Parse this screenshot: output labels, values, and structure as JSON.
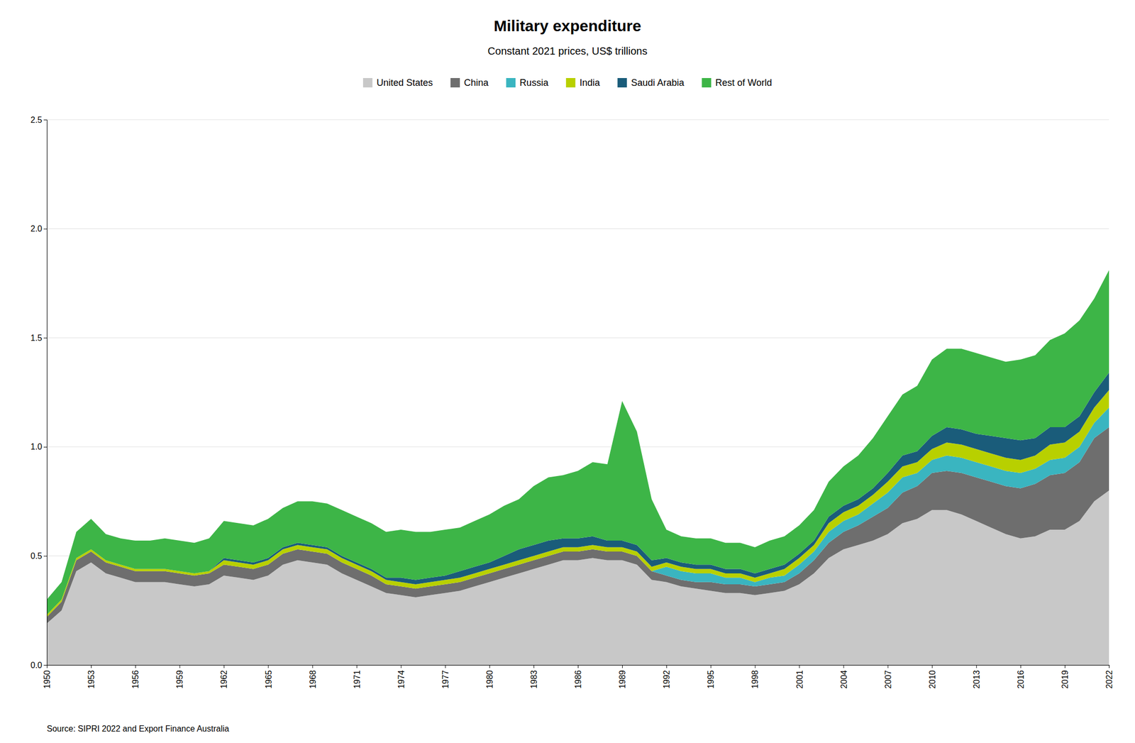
{
  "chart_data": {
    "type": "area",
    "stacked": true,
    "title": "Military expenditure",
    "subtitle": "Constant 2021 prices, US$ trillions",
    "annotations": [
      "Source: SIPRI 2022 and Export Finance Australia"
    ],
    "x": [
      1950,
      1951,
      1952,
      1953,
      1954,
      1955,
      1956,
      1957,
      1958,
      1959,
      1960,
      1961,
      1962,
      1963,
      1964,
      1965,
      1966,
      1967,
      1968,
      1969,
      1970,
      1971,
      1972,
      1973,
      1974,
      1975,
      1976,
      1977,
      1978,
      1979,
      1980,
      1981,
      1982,
      1983,
      1984,
      1985,
      1986,
      1987,
      1988,
      1989,
      1990,
      1991,
      1992,
      1993,
      1994,
      1995,
      1996,
      1997,
      1998,
      1999,
      2000,
      2001,
      2002,
      2003,
      2004,
      2005,
      2006,
      2007,
      2008,
      2009,
      2010,
      2011,
      2012,
      2013,
      2014,
      2015,
      2016,
      2017,
      2018,
      2019,
      2020,
      2021,
      2022
    ],
    "series": [
      {
        "name": "United States",
        "color": "#c8c8c8",
        "values": [
          0.19,
          0.25,
          0.43,
          0.47,
          0.42,
          0.4,
          0.38,
          0.38,
          0.38,
          0.37,
          0.36,
          0.37,
          0.41,
          0.4,
          0.39,
          0.41,
          0.46,
          0.48,
          0.47,
          0.46,
          0.42,
          0.39,
          0.36,
          0.33,
          0.32,
          0.31,
          0.32,
          0.33,
          0.34,
          0.36,
          0.38,
          0.4,
          0.42,
          0.44,
          0.46,
          0.48,
          0.48,
          0.49,
          0.48,
          0.48,
          0.46,
          0.39,
          0.38,
          0.36,
          0.35,
          0.34,
          0.33,
          0.33,
          0.32,
          0.33,
          0.34,
          0.37,
          0.42,
          0.49,
          0.53,
          0.55,
          0.57,
          0.6,
          0.65,
          0.67,
          0.71,
          0.71,
          0.69,
          0.66,
          0.63,
          0.6,
          0.58,
          0.59,
          0.62,
          0.62,
          0.66,
          0.75,
          0.8
        ]
      },
      {
        "name": "China",
        "color": "#6e6e6e",
        "values": [
          0.03,
          0.04,
          0.05,
          0.05,
          0.05,
          0.05,
          0.05,
          0.05,
          0.05,
          0.05,
          0.05,
          0.05,
          0.05,
          0.05,
          0.05,
          0.05,
          0.05,
          0.05,
          0.05,
          0.05,
          0.05,
          0.05,
          0.05,
          0.04,
          0.04,
          0.04,
          0.04,
          0.04,
          0.04,
          0.04,
          0.04,
          0.04,
          0.04,
          0.04,
          0.04,
          0.04,
          0.04,
          0.04,
          0.04,
          0.04,
          0.04,
          0.04,
          0.03,
          0.03,
          0.03,
          0.04,
          0.04,
          0.04,
          0.04,
          0.04,
          0.04,
          0.05,
          0.06,
          0.07,
          0.08,
          0.09,
          0.11,
          0.12,
          0.14,
          0.15,
          0.17,
          0.18,
          0.19,
          0.2,
          0.21,
          0.22,
          0.23,
          0.24,
          0.25,
          0.26,
          0.27,
          0.29,
          0.29
        ]
      },
      {
        "name": "Russia",
        "color": "#3ab5c0",
        "values": [
          0.0,
          0.0,
          0.0,
          0.0,
          0.0,
          0.0,
          0.0,
          0.0,
          0.0,
          0.0,
          0.0,
          0.0,
          0.0,
          0.0,
          0.0,
          0.0,
          0.0,
          0.0,
          0.0,
          0.0,
          0.0,
          0.0,
          0.0,
          0.0,
          0.0,
          0.0,
          0.0,
          0.0,
          0.0,
          0.0,
          0.0,
          0.0,
          0.0,
          0.0,
          0.0,
          0.0,
          0.0,
          0.0,
          0.0,
          0.0,
          0.0,
          0.0,
          0.04,
          0.04,
          0.04,
          0.04,
          0.03,
          0.03,
          0.02,
          0.03,
          0.03,
          0.04,
          0.04,
          0.05,
          0.05,
          0.05,
          0.06,
          0.07,
          0.07,
          0.06,
          0.06,
          0.07,
          0.07,
          0.07,
          0.07,
          0.07,
          0.07,
          0.07,
          0.07,
          0.07,
          0.07,
          0.07,
          0.09
        ]
      },
      {
        "name": "India",
        "color": "#b8d000",
        "values": [
          0.01,
          0.01,
          0.01,
          0.01,
          0.01,
          0.01,
          0.01,
          0.01,
          0.01,
          0.01,
          0.01,
          0.01,
          0.02,
          0.02,
          0.02,
          0.02,
          0.02,
          0.02,
          0.02,
          0.02,
          0.02,
          0.02,
          0.02,
          0.02,
          0.02,
          0.02,
          0.02,
          0.02,
          0.02,
          0.02,
          0.02,
          0.02,
          0.02,
          0.02,
          0.02,
          0.02,
          0.02,
          0.02,
          0.02,
          0.02,
          0.02,
          0.02,
          0.02,
          0.02,
          0.02,
          0.02,
          0.02,
          0.02,
          0.02,
          0.02,
          0.03,
          0.03,
          0.03,
          0.04,
          0.04,
          0.04,
          0.04,
          0.05,
          0.05,
          0.05,
          0.05,
          0.06,
          0.06,
          0.06,
          0.06,
          0.06,
          0.06,
          0.06,
          0.07,
          0.07,
          0.07,
          0.07,
          0.08
        ]
      },
      {
        "name": "Saudi Arabia",
        "color": "#1a5c7a",
        "values": [
          0.0,
          0.0,
          0.0,
          0.0,
          0.0,
          0.0,
          0.0,
          0.0,
          0.0,
          0.0,
          0.0,
          0.0,
          0.01,
          0.01,
          0.01,
          0.01,
          0.01,
          0.01,
          0.01,
          0.01,
          0.01,
          0.01,
          0.01,
          0.01,
          0.02,
          0.02,
          0.02,
          0.02,
          0.03,
          0.03,
          0.03,
          0.04,
          0.05,
          0.05,
          0.05,
          0.04,
          0.04,
          0.04,
          0.03,
          0.03,
          0.03,
          0.03,
          0.02,
          0.02,
          0.02,
          0.02,
          0.02,
          0.02,
          0.02,
          0.02,
          0.02,
          0.02,
          0.02,
          0.03,
          0.03,
          0.03,
          0.03,
          0.04,
          0.05,
          0.05,
          0.06,
          0.07,
          0.07,
          0.07,
          0.08,
          0.09,
          0.09,
          0.08,
          0.08,
          0.07,
          0.07,
          0.07,
          0.08
        ]
      },
      {
        "name": "Rest of World",
        "color": "#3db547",
        "values": [
          0.07,
          0.08,
          0.12,
          0.14,
          0.12,
          0.12,
          0.13,
          0.13,
          0.14,
          0.14,
          0.14,
          0.15,
          0.17,
          0.17,
          0.17,
          0.18,
          0.18,
          0.19,
          0.2,
          0.2,
          0.21,
          0.21,
          0.21,
          0.21,
          0.22,
          0.22,
          0.21,
          0.21,
          0.2,
          0.21,
          0.22,
          0.23,
          0.23,
          0.27,
          0.29,
          0.29,
          0.31,
          0.34,
          0.35,
          0.64,
          0.52,
          0.28,
          0.13,
          0.12,
          0.12,
          0.12,
          0.12,
          0.12,
          0.12,
          0.13,
          0.13,
          0.13,
          0.14,
          0.16,
          0.18,
          0.2,
          0.23,
          0.26,
          0.28,
          0.3,
          0.35,
          0.36,
          0.37,
          0.37,
          0.36,
          0.35,
          0.37,
          0.38,
          0.4,
          0.43,
          0.44,
          0.43,
          0.47
        ]
      }
    ],
    "xlim": [
      1950,
      2022
    ],
    "xticks": [
      1950,
      1953,
      1956,
      1959,
      1962,
      1965,
      1968,
      1971,
      1974,
      1977,
      1980,
      1983,
      1986,
      1989,
      1992,
      1995,
      1998,
      2001,
      2004,
      2007,
      2010,
      2013,
      2016,
      2019,
      2022
    ],
    "ylim": [
      0,
      2.5
    ],
    "yticks": [
      {
        "value": 0,
        "label": "0.0"
      },
      0.5,
      {
        "value": 1,
        "label": "1.0"
      },
      1.5,
      {
        "value": 2,
        "label": "2.0"
      },
      2.5
    ],
    "grid": true,
    "legend": "top"
  }
}
